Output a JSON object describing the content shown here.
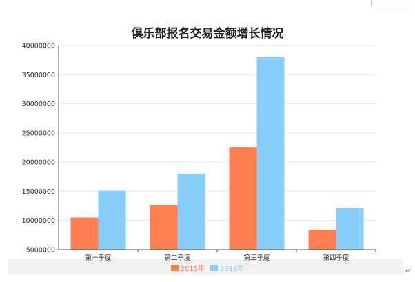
{
  "colors": {
    "series_2015": "#FF7F50",
    "series_2016": "#87CEFA"
  },
  "chart_data": {
    "type": "bar",
    "title": "俱乐部报名交易金额增长情况",
    "categories": [
      "第一季度",
      "第二季度",
      "第三季度",
      "第四季度"
    ],
    "series": [
      {
        "name": "2015年",
        "values": [
          10500000,
          12600000,
          22600000,
          8400000
        ]
      },
      {
        "name": "2016年",
        "values": [
          15100000,
          18000000,
          38000000,
          12100000
        ]
      }
    ],
    "yticks": [
      "5000000",
      "10000000",
      "15000000",
      "20000000",
      "25000000",
      "30000000",
      "35000000",
      "40000000"
    ],
    "ylim": [
      5000000,
      40000000
    ],
    "grid": true,
    "legend": "bottom-center"
  }
}
